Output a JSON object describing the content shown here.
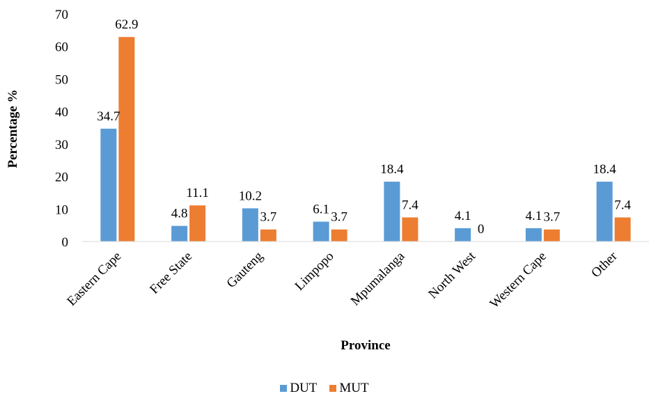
{
  "chart_data": {
    "type": "bar",
    "categories": [
      "Eastern Cape",
      "Free State",
      "Gauteng",
      "Limpopo",
      "Mpumalanga",
      "North West",
      "Western Cape",
      "Other"
    ],
    "series": [
      {
        "name": "DUT",
        "values": [
          34.7,
          4.8,
          10.2,
          6.1,
          18.4,
          4.1,
          4.1,
          18.4
        ],
        "color": "#5B9BD5"
      },
      {
        "name": "MUT",
        "values": [
          62.9,
          11.1,
          3.7,
          3.7,
          7.4,
          0,
          3.7,
          7.4
        ],
        "color": "#ED7D31"
      }
    ],
    "title": "",
    "xlabel": "Province",
    "ylabel": "Percentage %",
    "ylim": [
      0,
      70
    ],
    "yticks": [
      0,
      10,
      20,
      30,
      40,
      50,
      60,
      70
    ],
    "grid": false,
    "legend_position": "bottom"
  }
}
